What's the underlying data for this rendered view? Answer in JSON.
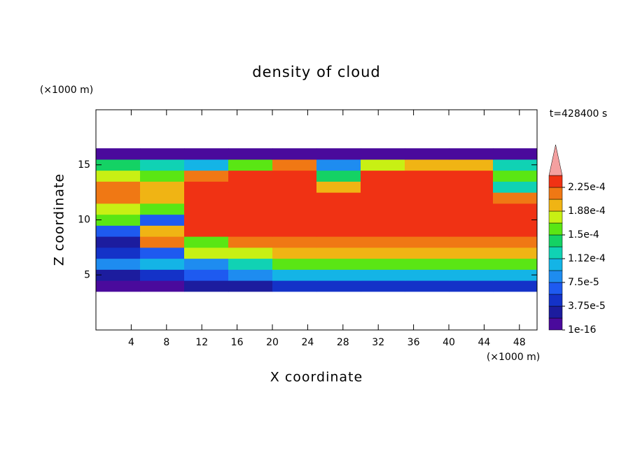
{
  "chart_data": {
    "type": "contour",
    "title": "density of cloud",
    "x_label": "X coordinate",
    "y_label": "Z coordinate",
    "x_unit": "(×1000 m)",
    "y_unit": "(×1000 m)",
    "annotation": "t=428400 s",
    "xlim": [
      0,
      50
    ],
    "ylim": [
      0,
      20
    ],
    "xticks": [
      4,
      8,
      12,
      16,
      20,
      24,
      28,
      32,
      36,
      40,
      44,
      48
    ],
    "yticks": [
      5,
      10,
      15
    ],
    "x": [
      2.5,
      7.5,
      12.5,
      17.5,
      22.5,
      27.5,
      32.5,
      37.5,
      42.5,
      47.5
    ],
    "y": [
      4,
      5,
      6,
      7,
      8,
      9,
      10,
      11,
      12,
      13,
      14,
      15,
      16
    ],
    "z": [
      [
        1e-05,
        1e-05,
        2e-05,
        2e-05,
        4e-05,
        4e-05,
        4e-05,
        4e-05,
        4e-05,
        4e-05
      ],
      [
        2e-05,
        5e-05,
        6e-05,
        9e-05,
        0.00011,
        0.00011,
        0.00011,
        0.00011,
        0.00011,
        0.00011
      ],
      [
        9e-05,
        0.0001,
        8e-05,
        0.00013,
        0.000155,
        0.000155,
        0.000155,
        0.000155,
        0.000155,
        0.000155
      ],
      [
        5e-05,
        6e-05,
        0.00017,
        0.00018,
        0.000195,
        0.000195,
        0.000195,
        0.000195,
        0.000195,
        0.000195
      ],
      [
        3e-05,
        0.00021,
        0.00016,
        0.00021,
        0.00022,
        0.00022,
        0.00022,
        0.00022,
        0.00022,
        0.00022
      ],
      [
        6e-05,
        0.00019,
        0.00023,
        0.00023,
        0.00023,
        0.00023,
        0.00023,
        0.00023,
        0.00023,
        0.00023
      ],
      [
        0.00015,
        6e-05,
        0.00023,
        0.000235,
        0.000235,
        0.000235,
        0.000235,
        0.000235,
        0.000235,
        0.00023
      ],
      [
        0.00018,
        0.00016,
        0.000235,
        0.000235,
        0.000235,
        0.000235,
        0.000235,
        0.000235,
        0.000235,
        0.00023
      ],
      [
        0.00021,
        0.0002,
        0.000235,
        0.000235,
        0.000235,
        0.000235,
        0.000235,
        0.000235,
        0.000235,
        0.00022
      ],
      [
        0.00022,
        0.00019,
        0.00023,
        0.00023,
        0.000235,
        0.0002,
        0.000235,
        0.000235,
        0.00023,
        0.00012
      ],
      [
        0.00018,
        0.00015,
        0.00021,
        0.00023,
        0.00023,
        0.00014,
        0.00023,
        0.00023,
        0.00023,
        0.00015
      ],
      [
        0.00014,
        0.00012,
        0.0001,
        0.00016,
        0.00021,
        9e-05,
        0.00018,
        0.0002,
        0.00019,
        0.00012
      ],
      [
        1e-05,
        1e-05,
        1e-05,
        1e-05,
        1e-05,
        1e-05,
        1e-05,
        1e-05,
        1e-05,
        1e-05
      ]
    ],
    "levels": [
      1e-16,
      1.875e-05,
      3.75e-05,
      5.625e-05,
      7.5e-05,
      9.375e-05,
      0.0001125,
      0.00013125,
      0.00015,
      0.00016875,
      0.0001875,
      0.00020625,
      0.000225,
      0.00024375
    ],
    "colors": [
      "#4a0a9c",
      "#1c1c9e",
      "#1432c8",
      "#1e5af0",
      "#1e8cf0",
      "#14b4e6",
      "#10d2b4",
      "#14d264",
      "#5ae614",
      "#c8f014",
      "#f0b414",
      "#f07814",
      "#f03214"
    ],
    "extend_color": "#f4a0a0",
    "colorbar_ticks": [
      {
        "value": 1e-16,
        "label": "1e-16"
      },
      {
        "value": 3.75e-05,
        "label": "3.75e-5"
      },
      {
        "value": 7.5e-05,
        "label": "7.5e-5"
      },
      {
        "value": 0.0001125,
        "label": "1.12e-4"
      },
      {
        "value": 0.00015,
        "label": "1.5e-4"
      },
      {
        "value": 0.0001875,
        "label": "1.88e-4"
      },
      {
        "value": 0.000225,
        "label": "2.25e-4"
      }
    ]
  }
}
